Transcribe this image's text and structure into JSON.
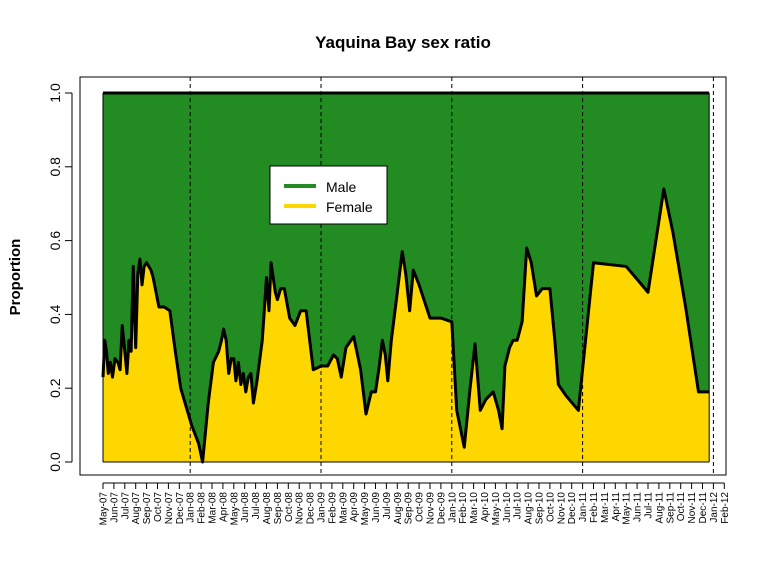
{
  "chart_data": {
    "type": "area",
    "title": "Yaquina Bay sex ratio",
    "xlabel": "",
    "ylabel": "Proportion",
    "ylim": [
      0,
      1
    ],
    "yticks": [
      "0.0",
      "0.2",
      "0.4",
      "0.6",
      "0.8",
      "1.0"
    ],
    "x_tick_labels": [
      "May-07",
      "Jun-07",
      "Jul-07",
      "Aug-07",
      "Sep-07",
      "Oct-07",
      "Nov-07",
      "Dec-07",
      "Jan-08",
      "Feb-08",
      "Mar-08",
      "Apr-08",
      "May-08",
      "Jun-08",
      "Jul-08",
      "Aug-08",
      "Sep-08",
      "Oct-08",
      "Nov-08",
      "Dec-08",
      "Jan-09",
      "Feb-09",
      "Mar-09",
      "Apr-09",
      "May-09",
      "Jun-09",
      "Jul-09",
      "Aug-09",
      "Sep-09",
      "Oct-09",
      "Nov-09",
      "Dec-09",
      "Jan-10",
      "Feb-10",
      "Mar-10",
      "Apr-10",
      "May-10",
      "Jun-10",
      "Jul-10",
      "Aug-10",
      "Sep-10",
      "Oct-10",
      "Nov-10",
      "Dec-10",
      "Jan-11",
      "Feb-11",
      "Mar-11",
      "Apr-11",
      "May-11",
      "Jun-11",
      "Jul-11",
      "Aug-11",
      "Sep-11",
      "Oct-11",
      "Nov-11",
      "Dec-11",
      "Jan-12",
      "Feb-12"
    ],
    "year_boundaries": [
      "Jan-08",
      "Jan-09",
      "Jan-10",
      "Jan-11",
      "Jan-12"
    ],
    "legend": {
      "position": "top-left-center",
      "entries": [
        {
          "name": "Male",
          "color": "#228B22"
        },
        {
          "name": "Female",
          "color": "#FFD700"
        }
      ]
    },
    "series": [
      {
        "name": "Female",
        "color": "#FFD700",
        "x": [
          "2007-05-01",
          "2007-05-06",
          "2007-05-11",
          "2007-05-16",
          "2007-05-22",
          "2007-05-28",
          "2007-06-04",
          "2007-06-12",
          "2007-06-18",
          "2007-06-24",
          "2007-07-01",
          "2007-07-07",
          "2007-07-13",
          "2007-07-19",
          "2007-07-25",
          "2007-08-01",
          "2007-08-07",
          "2007-08-13",
          "2007-08-19",
          "2007-08-25",
          "2007-09-01",
          "2007-09-07",
          "2007-09-13",
          "2007-09-19",
          "2007-10-05",
          "2007-10-20",
          "2007-11-05",
          "2007-11-20",
          "2007-12-05",
          "2008-01-05",
          "2008-01-25",
          "2008-02-05",
          "2008-02-20",
          "2008-03-05",
          "2008-03-20",
          "2008-03-28",
          "2008-04-03",
          "2008-04-10",
          "2008-04-17",
          "2008-04-24",
          "2008-05-01",
          "2008-05-07",
          "2008-05-14",
          "2008-05-21",
          "2008-05-28",
          "2008-06-04",
          "2008-06-11",
          "2008-06-18",
          "2008-06-25",
          "2008-07-05",
          "2008-07-20",
          "2008-08-01",
          "2008-08-08",
          "2008-08-14",
          "2008-08-20",
          "2008-08-26",
          "2008-09-01",
          "2008-09-10",
          "2008-09-20",
          "2008-10-05",
          "2008-10-20",
          "2008-11-05",
          "2008-11-20",
          "2008-12-10",
          "2009-01-01",
          "2009-01-20",
          "2009-02-05",
          "2009-02-15",
          "2009-02-25",
          "2009-03-10",
          "2009-04-01",
          "2009-04-20",
          "2009-05-05",
          "2009-05-20",
          "2009-06-01",
          "2009-06-10",
          "2009-06-20",
          "2009-06-28",
          "2009-07-05",
          "2009-07-15",
          "2009-08-01",
          "2009-08-15",
          "2009-08-25",
          "2009-09-05",
          "2009-09-15",
          "2009-10-01",
          "2009-11-01",
          "2009-12-01",
          "2010-01-01",
          "2010-01-15",
          "2010-02-05",
          "2010-02-20",
          "2010-03-05",
          "2010-03-20",
          "2010-04-05",
          "2010-04-25",
          "2010-05-10",
          "2010-05-20",
          "2010-05-28",
          "2010-06-10",
          "2010-06-20",
          "2010-07-01",
          "2010-07-15",
          "2010-07-28",
          "2010-08-10",
          "2010-08-25",
          "2010-09-10",
          "2010-10-01",
          "2010-10-15",
          "2010-10-25",
          "2010-11-15",
          "2010-12-20",
          "2011-02-01",
          "2011-05-01",
          "2011-07-01",
          "2011-08-15",
          "2011-09-10",
          "2011-10-15",
          "2011-11-20",
          "2011-12-20"
        ],
        "values": [
          0.23,
          0.33,
          0.3,
          0.24,
          0.27,
          0.23,
          0.28,
          0.27,
          0.25,
          0.37,
          0.3,
          0.24,
          0.33,
          0.3,
          0.53,
          0.31,
          0.51,
          0.55,
          0.48,
          0.53,
          0.54,
          0.53,
          0.52,
          0.5,
          0.42,
          0.42,
          0.41,
          0.3,
          0.2,
          0.1,
          0.05,
          0.0,
          0.16,
          0.27,
          0.3,
          0.33,
          0.36,
          0.33,
          0.24,
          0.28,
          0.28,
          0.22,
          0.27,
          0.21,
          0.24,
          0.19,
          0.23,
          0.24,
          0.16,
          0.22,
          0.33,
          0.5,
          0.41,
          0.54,
          0.5,
          0.46,
          0.44,
          0.47,
          0.47,
          0.39,
          0.37,
          0.41,
          0.41,
          0.25,
          0.26,
          0.26,
          0.29,
          0.28,
          0.23,
          0.31,
          0.34,
          0.25,
          0.13,
          0.19,
          0.19,
          0.25,
          0.33,
          0.29,
          0.22,
          0.33,
          0.46,
          0.57,
          0.51,
          0.41,
          0.52,
          0.48,
          0.39,
          0.39,
          0.38,
          0.14,
          0.04,
          0.2,
          0.32,
          0.14,
          0.17,
          0.19,
          0.14,
          0.09,
          0.26,
          0.31,
          0.33,
          0.33,
          0.38,
          0.58,
          0.54,
          0.45,
          0.47,
          0.47,
          0.33,
          0.21,
          0.18,
          0.14,
          0.54,
          0.53,
          0.46,
          0.74,
          0.62,
          0.42,
          0.19,
          0.19
        ]
      },
      {
        "name": "Male",
        "color": "#228B22",
        "values_note": "complement of Female (1 - Female)"
      }
    ],
    "grid": false
  }
}
